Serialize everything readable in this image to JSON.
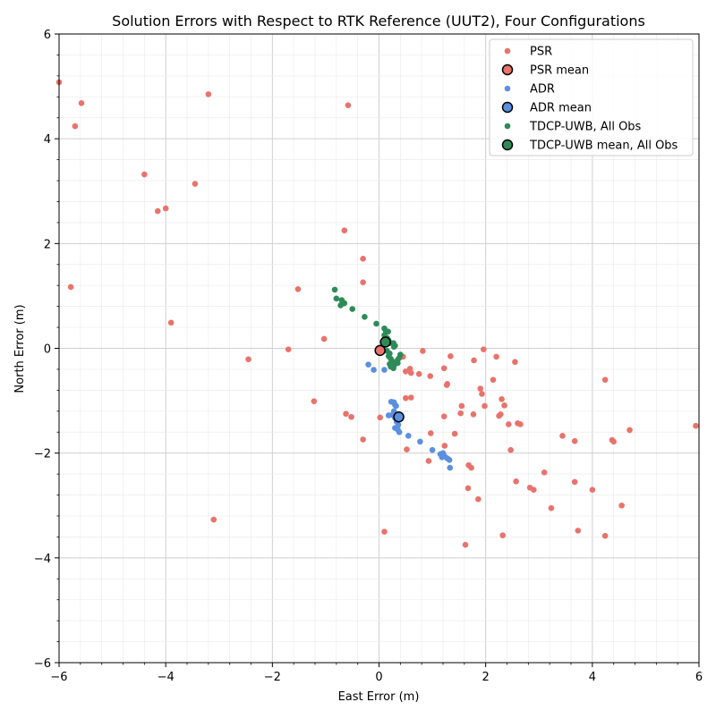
{
  "chart_data": {
    "type": "scatter",
    "title": "Solution Errors with Respect to RTK Reference (UUT2), Four Configurations",
    "xlabel": "East Error (m)",
    "ylabel": "North Error (m)",
    "xlim": [
      -6,
      6
    ],
    "ylim": [
      -6,
      6
    ],
    "xticks": [
      "−6",
      "−4",
      "−2",
      "0",
      "2",
      "4",
      "6"
    ],
    "yticks": [
      "−6",
      "−4",
      "−2",
      "0",
      "2",
      "4",
      "6"
    ],
    "grid": "major and minor",
    "legend_position": "top-right",
    "legend": [
      {
        "label": "PSR",
        "kind": "point",
        "color": "#e8736c"
      },
      {
        "label": "PSR mean",
        "kind": "mean",
        "color": "#e8736c"
      },
      {
        "label": "ADR",
        "kind": "point",
        "color": "#5b8fe0"
      },
      {
        "label": "ADR mean",
        "kind": "mean",
        "color": "#5b8fe0"
      },
      {
        "label": "TDCP-UWB, All Obs",
        "kind": "point",
        "color": "#2e8b57"
      },
      {
        "label": "TDCP-UWB mean, All Obs",
        "kind": "mean",
        "color": "#2e8b57"
      }
    ],
    "series": [
      {
        "name": "PSR",
        "color": "#e8736c",
        "mean": [
          0.02,
          -0.04
        ],
        "points": [
          [
            -6.0,
            5.08
          ],
          [
            -5.58,
            4.68
          ],
          [
            -3.2,
            4.85
          ],
          [
            -0.58,
            4.64
          ],
          [
            -5.7,
            4.24
          ],
          [
            -4.4,
            3.32
          ],
          [
            -3.45,
            3.14
          ],
          [
            -4.15,
            2.62
          ],
          [
            -4.0,
            2.67
          ],
          [
            -0.65,
            2.25
          ],
          [
            -0.3,
            1.71
          ],
          [
            -0.3,
            1.26
          ],
          [
            -5.78,
            1.17
          ],
          [
            -1.52,
            1.13
          ],
          [
            -3.9,
            0.49
          ],
          [
            -1.03,
            0.18
          ],
          [
            -1.7,
            -0.02
          ],
          [
            -2.45,
            -0.21
          ],
          [
            -1.22,
            -1.01
          ],
          [
            -0.62,
            -1.25
          ],
          [
            -0.52,
            -1.31
          ],
          [
            0.02,
            -1.32
          ],
          [
            -0.3,
            -1.74
          ],
          [
            0.1,
            -3.5
          ],
          [
            -3.1,
            -3.27
          ],
          [
            0.45,
            -0.16
          ],
          [
            0.5,
            -0.44
          ],
          [
            0.58,
            -0.39
          ],
          [
            0.6,
            -0.47
          ],
          [
            0.75,
            -0.49
          ],
          [
            0.82,
            -0.05
          ],
          [
            0.96,
            -0.53
          ],
          [
            1.22,
            -0.38
          ],
          [
            1.27,
            -0.7
          ],
          [
            1.28,
            -0.68
          ],
          [
            1.34,
            -0.15
          ],
          [
            1.78,
            -0.23
          ],
          [
            1.96,
            -0.02
          ],
          [
            2.2,
            -0.16
          ],
          [
            2.55,
            -0.26
          ],
          [
            2.14,
            -0.6
          ],
          [
            1.9,
            -0.77
          ],
          [
            1.93,
            -0.87
          ],
          [
            0.5,
            -0.95
          ],
          [
            0.6,
            -0.94
          ],
          [
            1.22,
            -1.3
          ],
          [
            1.55,
            -1.1
          ],
          [
            1.53,
            -1.24
          ],
          [
            1.77,
            -1.26
          ],
          [
            1.98,
            -1.1
          ],
          [
            2.25,
            -1.29
          ],
          [
            2.28,
            -1.26
          ],
          [
            2.3,
            -0.97
          ],
          [
            2.35,
            -1.09
          ],
          [
            2.43,
            -1.45
          ],
          [
            2.6,
            -1.43
          ],
          [
            2.65,
            -1.45
          ],
          [
            0.97,
            -1.62
          ],
          [
            1.42,
            -1.63
          ],
          [
            0.52,
            -1.93
          ],
          [
            1.23,
            -1.86
          ],
          [
            2.47,
            -1.94
          ],
          [
            0.93,
            -2.15
          ],
          [
            1.68,
            -2.23
          ],
          [
            1.73,
            -2.28
          ],
          [
            1.67,
            -2.67
          ],
          [
            1.86,
            -2.88
          ],
          [
            2.57,
            -2.54
          ],
          [
            2.83,
            -2.66
          ],
          [
            2.9,
            -2.7
          ],
          [
            3.1,
            -2.37
          ],
          [
            3.23,
            -3.05
          ],
          [
            3.44,
            -1.67
          ],
          [
            3.67,
            -1.77
          ],
          [
            3.67,
            -2.55
          ],
          [
            4.0,
            -2.7
          ],
          [
            4.24,
            -0.6
          ],
          [
            4.37,
            -1.75
          ],
          [
            4.4,
            -1.78
          ],
          [
            4.7,
            -1.56
          ],
          [
            4.55,
            -3.0
          ],
          [
            3.73,
            -3.48
          ],
          [
            4.24,
            -3.58
          ],
          [
            2.32,
            -3.57
          ],
          [
            1.62,
            -3.75
          ],
          [
            5.94,
            -1.48
          ]
        ]
      },
      {
        "name": "ADR",
        "color": "#5b8fe0",
        "mean": [
          0.37,
          -1.31
        ],
        "points": [
          [
            -0.2,
            -0.31
          ],
          [
            -0.1,
            -0.41
          ],
          [
            0.1,
            -0.41
          ],
          [
            0.23,
            -1.02
          ],
          [
            0.28,
            -1.03
          ],
          [
            0.3,
            -1.08
          ],
          [
            0.32,
            -1.1
          ],
          [
            0.28,
            -1.2
          ],
          [
            0.25,
            -1.27
          ],
          [
            0.18,
            -1.28
          ],
          [
            0.3,
            -1.33
          ],
          [
            0.33,
            -1.4
          ],
          [
            0.36,
            -1.46
          ],
          [
            0.3,
            -1.52
          ],
          [
            0.35,
            -1.55
          ],
          [
            0.38,
            -1.6
          ],
          [
            0.55,
            -1.67
          ],
          [
            0.77,
            -1.78
          ],
          [
            1.0,
            -1.94
          ],
          [
            1.15,
            -2.02
          ],
          [
            1.2,
            -2.0
          ],
          [
            1.23,
            -2.06
          ],
          [
            1.18,
            -2.08
          ],
          [
            1.28,
            -2.1
          ],
          [
            1.32,
            -2.13
          ],
          [
            1.33,
            -2.28
          ]
        ]
      },
      {
        "name": "TDCP-UWB, All Obs",
        "color": "#2e8b57",
        "mean": [
          0.12,
          0.12
        ],
        "points": [
          [
            -0.83,
            1.12
          ],
          [
            -0.8,
            0.95
          ],
          [
            -0.7,
            0.92
          ],
          [
            -0.68,
            0.88
          ],
          [
            -0.65,
            0.86
          ],
          [
            -0.72,
            0.82
          ],
          [
            -0.5,
            0.75
          ],
          [
            -0.27,
            0.6
          ],
          [
            -0.05,
            0.47
          ],
          [
            0.1,
            0.38
          ],
          [
            0.13,
            0.33
          ],
          [
            0.17,
            0.32
          ],
          [
            0.1,
            0.25
          ],
          [
            0.15,
            0.2
          ],
          [
            0.18,
            0.15
          ],
          [
            0.2,
            0.1
          ],
          [
            0.27,
            0.1
          ],
          [
            0.3,
            0.05
          ],
          [
            0.28,
            0.03
          ],
          [
            0.15,
            -0.05
          ],
          [
            0.2,
            -0.1
          ],
          [
            0.4,
            -0.12
          ],
          [
            0.38,
            -0.18
          ],
          [
            0.22,
            -0.2
          ],
          [
            0.35,
            -0.22
          ],
          [
            0.25,
            -0.25
          ],
          [
            0.32,
            -0.27
          ],
          [
            0.2,
            -0.3
          ],
          [
            0.28,
            -0.33
          ],
          [
            0.22,
            -0.35
          ],
          [
            0.27,
            -0.38
          ],
          [
            0.18,
            -0.15
          ],
          [
            0.35,
            -0.28
          ]
        ]
      }
    ]
  }
}
